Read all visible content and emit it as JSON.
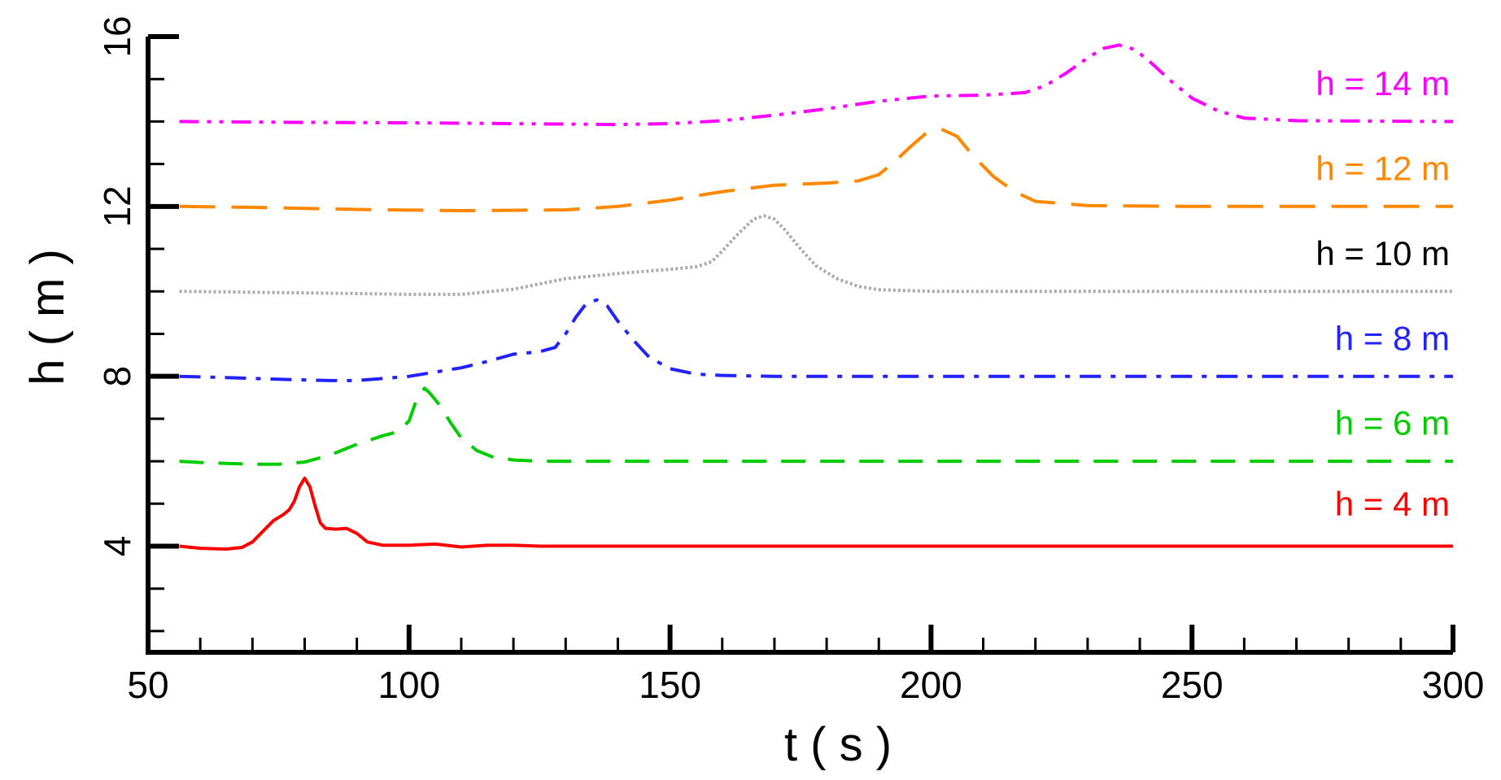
{
  "chart_data": {
    "type": "line",
    "title": "",
    "xlabel": "t ( s )",
    "ylabel": "h ( m )",
    "xlim": [
      50,
      300
    ],
    "ylim": [
      1.5,
      16
    ],
    "x_major_ticks": [
      50,
      100,
      150,
      200,
      250,
      300
    ],
    "x_tick_labels": [
      "50",
      "100",
      "150",
      "200",
      "250",
      "300"
    ],
    "y_major_ticks": [
      4,
      8,
      12,
      16
    ],
    "y_tick_labels": [
      "4",
      "8",
      "12",
      "16"
    ],
    "grid": false,
    "legend": "inline labels at right",
    "series": [
      {
        "name": "h = 4 m",
        "color": "#ff0000",
        "dash": "solid",
        "x": [
          56,
          60,
          65,
          68,
          70,
          72,
          74,
          76,
          77,
          78,
          79,
          80,
          81,
          82,
          83,
          84,
          86,
          88,
          90,
          92,
          95,
          100,
          105,
          110,
          115,
          120,
          125,
          130,
          140,
          150,
          160,
          200,
          250,
          300
        ],
        "y": [
          4.0,
          3.95,
          3.93,
          3.97,
          4.1,
          4.35,
          4.6,
          4.75,
          4.85,
          5.05,
          5.4,
          5.6,
          5.4,
          4.95,
          4.55,
          4.42,
          4.4,
          4.42,
          4.3,
          4.1,
          4.02,
          4.02,
          4.05,
          3.98,
          4.02,
          4.02,
          4.0,
          4.0,
          4.0,
          4.0,
          4.0,
          4.0,
          4.0,
          4.0
        ]
      },
      {
        "name": "h = 6 m",
        "color": "#00cc00",
        "dash": "dash",
        "x": [
          56,
          60,
          65,
          70,
          75,
          80,
          85,
          90,
          95,
          98,
          100,
          101,
          102,
          103,
          104,
          106,
          108,
          110,
          113,
          116,
          120,
          125,
          130,
          150,
          200,
          250,
          300
        ],
        "y": [
          6.0,
          5.97,
          5.95,
          5.93,
          5.93,
          5.98,
          6.15,
          6.4,
          6.6,
          6.7,
          6.95,
          7.3,
          7.6,
          7.72,
          7.6,
          7.3,
          6.9,
          6.55,
          6.25,
          6.1,
          6.03,
          6.0,
          6.0,
          6.0,
          6.0,
          6.0,
          6.0
        ]
      },
      {
        "name": "h = 8 m",
        "color": "#2222ff",
        "dash": "dashdot",
        "x": [
          56,
          65,
          75,
          85,
          90,
          100,
          110,
          115,
          120,
          125,
          128,
          130,
          132,
          134,
          136,
          138,
          140,
          143,
          146,
          150,
          155,
          160,
          170,
          200,
          250,
          300
        ],
        "y": [
          8.0,
          7.97,
          7.93,
          7.9,
          7.9,
          8.0,
          8.2,
          8.35,
          8.52,
          8.58,
          8.68,
          9.0,
          9.4,
          9.72,
          9.8,
          9.65,
          9.3,
          8.85,
          8.45,
          8.18,
          8.05,
          8.02,
          8.0,
          8.0,
          8.0,
          8.0
        ]
      },
      {
        "name": "h = 10 m",
        "color": "#aaaaaa",
        "dash": "dotted",
        "x": [
          56,
          70,
          90,
          100,
          110,
          120,
          130,
          140,
          150,
          155,
          158,
          160,
          163,
          166,
          168,
          170,
          172,
          175,
          178,
          182,
          186,
          190,
          200,
          250,
          300
        ],
        "y": [
          10.0,
          9.98,
          9.95,
          9.93,
          9.93,
          10.05,
          10.3,
          10.42,
          10.52,
          10.58,
          10.7,
          10.95,
          11.35,
          11.7,
          11.78,
          11.7,
          11.45,
          11.0,
          10.6,
          10.3,
          10.12,
          10.04,
          10.0,
          10.0,
          10.0
        ]
      },
      {
        "name": "h = 12 m",
        "color": "#ff8800",
        "dash": "longdash",
        "x": [
          56,
          70,
          90,
          110,
          130,
          140,
          150,
          160,
          170,
          180,
          186,
          190,
          193,
          196,
          199,
          202,
          205,
          208,
          212,
          216,
          220,
          230,
          250,
          300
        ],
        "y": [
          12.0,
          11.98,
          11.93,
          11.9,
          11.92,
          12.0,
          12.15,
          12.35,
          12.5,
          12.55,
          12.6,
          12.75,
          13.05,
          13.4,
          13.72,
          13.82,
          13.65,
          13.2,
          12.7,
          12.35,
          12.12,
          12.02,
          12.0,
          12.0
        ]
      },
      {
        "name": "h = 14 m",
        "color": "#ff00ff",
        "dash": "dashdotdot",
        "x": [
          56,
          80,
          100,
          120,
          140,
          150,
          160,
          170,
          180,
          190,
          200,
          210,
          218,
          222,
          226,
          230,
          233,
          236,
          239,
          242,
          246,
          250,
          255,
          260,
          270,
          300
        ],
        "y": [
          14.0,
          13.98,
          13.97,
          13.95,
          13.93,
          13.95,
          14.02,
          14.15,
          14.3,
          14.48,
          14.6,
          14.62,
          14.68,
          14.85,
          15.15,
          15.5,
          15.72,
          15.8,
          15.7,
          15.4,
          14.95,
          14.55,
          14.25,
          14.08,
          14.02,
          14.0
        ]
      }
    ]
  }
}
